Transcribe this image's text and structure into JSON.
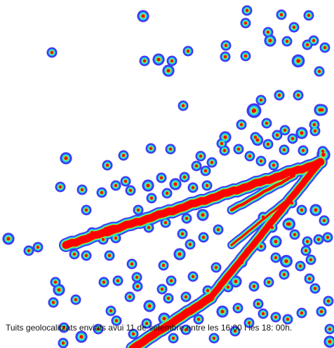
{
  "map": {
    "caption": "Tuits geolocalitzats enviats avui 11 de setembre entre les 16:00 i les 18: 00h.",
    "legend_colors": {
      "outer": "#3f3cf0",
      "mid": "#19d7f0",
      "inner": "#8cf03c",
      "core": "#ff0000"
    }
  }
}
